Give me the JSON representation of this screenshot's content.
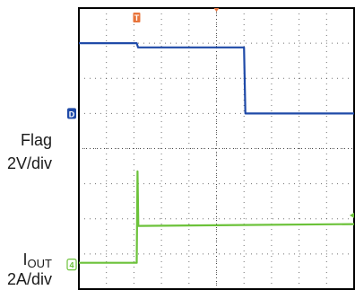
{
  "labels": {
    "flag": "Flag",
    "flag_scale": "2V/div",
    "iout_main": "I",
    "iout_sub": "OUT",
    "iout_scale": "2A/div"
  },
  "markers": {
    "trigger": "T",
    "ch_flag": "D",
    "ch_iout": "4"
  },
  "colors": {
    "flag_trace": "#1f4aa8",
    "iout_trace": "#6cc23a",
    "trigger_marker": "#e8743b",
    "grid_dots": "#444444",
    "frame": "#000000"
  },
  "chart_data": {
    "type": "line",
    "title": "",
    "xlabel": "",
    "ylabel": "",
    "grid": true,
    "x_divisions": 10,
    "y_divisions": 8,
    "xlim": [
      0,
      10
    ],
    "ylim": [
      0,
      8
    ],
    "series": [
      {
        "name": "Flag",
        "unit_per_div": "2V/div",
        "reference_level_div": 5.0,
        "points": [
          [
            0,
            7.0
          ],
          [
            2.1,
            7.0
          ],
          [
            2.15,
            6.88
          ],
          [
            6.0,
            6.88
          ],
          [
            6.05,
            5.0
          ],
          [
            10,
            5.0
          ]
        ]
      },
      {
        "name": "IOUT",
        "unit_per_div": "2A/div",
        "reference_level_div": 0.7,
        "points": [
          [
            0,
            0.75
          ],
          [
            2.1,
            0.75
          ],
          [
            2.13,
            3.35
          ],
          [
            2.16,
            1.8
          ],
          [
            10,
            1.85
          ]
        ]
      }
    ]
  }
}
